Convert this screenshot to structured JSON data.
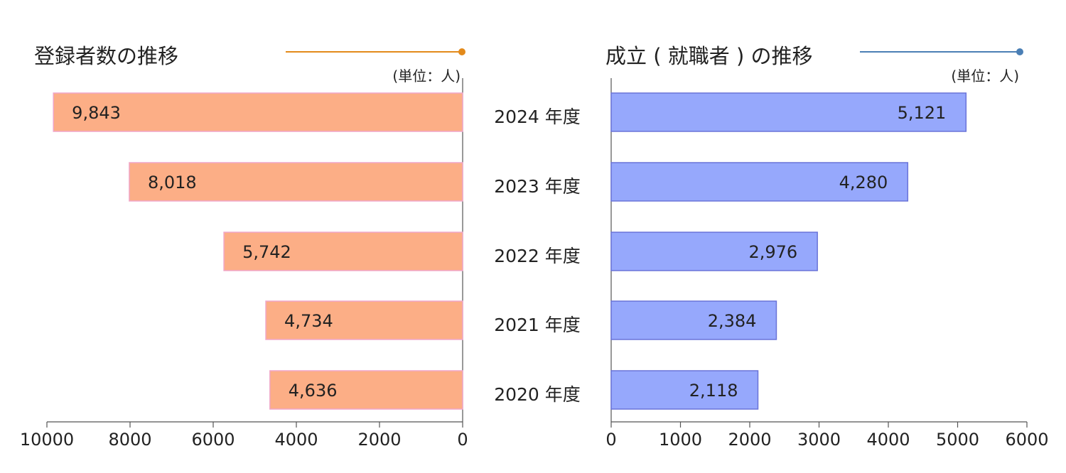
{
  "left_chart": {
    "title": "登録者数の推移",
    "unit": "(単位：人)",
    "accent_color": "#e38a1a",
    "bar_color": "#fcae86",
    "bar_border_color": "#f0a6c8"
  },
  "right_chart": {
    "title": "成立 ( 就職者 ) の推移",
    "unit": "(単位：人)",
    "accent_color": "#4a7fb5",
    "bar_color": "#96a8fc",
    "bar_border_color": "#6a74d8"
  },
  "chart_data": [
    {
      "type": "bar",
      "orientation": "horizontal",
      "direction": "right-to-left",
      "title": "登録者数の推移",
      "unit": "(単位：人)",
      "categories": [
        "2024 年度",
        "2023 年度",
        "2022 年度",
        "2021 年度",
        "2020 年度"
      ],
      "values": [
        9843,
        8018,
        5742,
        4734,
        4636
      ],
      "value_labels": [
        "9,843",
        "8,018",
        "5,742",
        "4,734",
        "4,636"
      ],
      "xlim": [
        0,
        10000
      ],
      "ticks": [
        10000,
        8000,
        6000,
        4000,
        2000,
        0
      ],
      "tick_labels": [
        "10000",
        "8000",
        "6000",
        "4000",
        "2000",
        "0"
      ],
      "grid": false
    },
    {
      "type": "bar",
      "orientation": "horizontal",
      "direction": "left-to-right",
      "title": "成立 ( 就職者 ) の推移",
      "unit": "(単位：人)",
      "categories": [
        "2024 年度",
        "2023 年度",
        "2022 年度",
        "2021 年度",
        "2020 年度"
      ],
      "values": [
        5121,
        4280,
        2976,
        2384,
        2118
      ],
      "value_labels": [
        "5,121",
        "4,280",
        "2,976",
        "2,384",
        "2,118"
      ],
      "xlim": [
        0,
        6000
      ],
      "ticks": [
        0,
        1000,
        2000,
        3000,
        4000,
        5000,
        6000
      ],
      "tick_labels": [
        "0",
        "1000",
        "2000",
        "3000",
        "4000",
        "5000",
        "6000"
      ],
      "grid": false
    }
  ]
}
